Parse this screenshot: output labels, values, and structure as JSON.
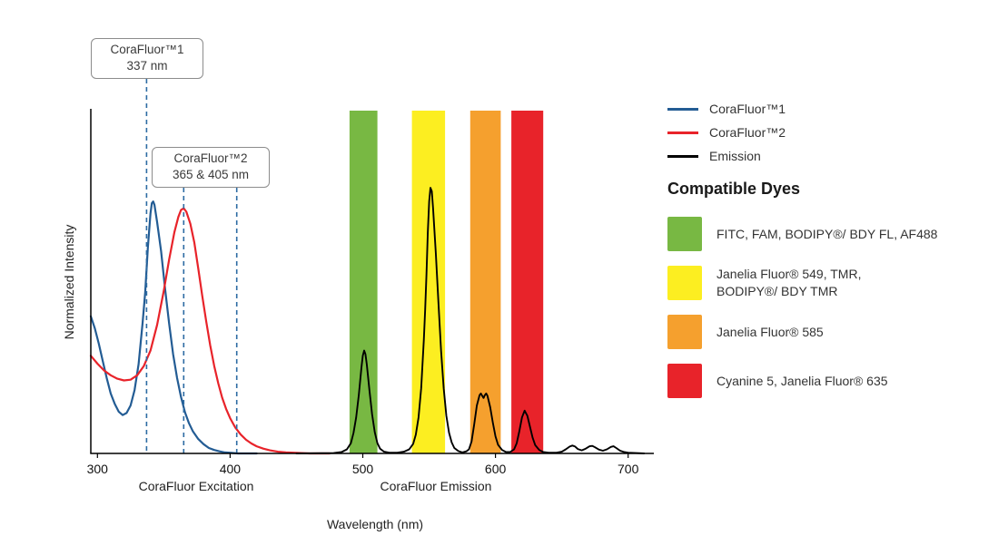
{
  "chart_data": {
    "type": "line",
    "title": "",
    "xlabel": "Wavelength (nm)",
    "ylabel": "Normalized Intensity",
    "x_axis_label_excitation": "CoraFluor Excitation",
    "x_axis_label_emission": "CoraFluor Emission",
    "xlim": [
      295,
      718
    ],
    "ylim": [
      0,
      1
    ],
    "x_ticks": [
      300,
      400,
      500,
      600,
      700
    ],
    "grid": false,
    "legend_position": "top-right",
    "callout_line_color": "#2d6ba3",
    "annotations": [
      {
        "title": "CoraFluor™1",
        "value": "337 nm",
        "lines_nm": [
          337
        ]
      },
      {
        "title": "CoraFluor™2",
        "value": "365 & 405 nm",
        "lines_nm": [
          365,
          405
        ]
      }
    ],
    "bands": [
      {
        "id": "green",
        "dyes": "FITC, FAM, BODIPY/ BDY FL, AF488",
        "color": "#78b843",
        "from": 490,
        "to": 511
      },
      {
        "id": "yellow",
        "dyes": "Janelia Fluor 549, TMR, BODIPY/ BDY TMR",
        "color": "#fcee21",
        "from": 537,
        "to": 562
      },
      {
        "id": "orange",
        "dyes": "Janelia Fluor 585",
        "color": "#f5a02e",
        "from": 581,
        "to": 604
      },
      {
        "id": "red",
        "dyes": "Cyanine 5, Janelia Fluor 635",
        "color": "#e8232a",
        "from": 612,
        "to": 636
      }
    ],
    "series": [
      {
        "name": "CoraFluor™1",
        "color": "#235c94",
        "width": 2.2,
        "points": [
          [
            295,
            0.4
          ],
          [
            298,
            0.365
          ],
          [
            301,
            0.32
          ],
          [
            304,
            0.27
          ],
          [
            307,
            0.22
          ],
          [
            310,
            0.175
          ],
          [
            313,
            0.145
          ],
          [
            316,
            0.122
          ],
          [
            319,
            0.112
          ],
          [
            322,
            0.118
          ],
          [
            325,
            0.14
          ],
          [
            328,
            0.185
          ],
          [
            331,
            0.26
          ],
          [
            334,
            0.38
          ],
          [
            336,
            0.47
          ],
          [
            338,
            0.6
          ],
          [
            340,
            0.7
          ],
          [
            341,
            0.73
          ],
          [
            342,
            0.735
          ],
          [
            343,
            0.725
          ],
          [
            345,
            0.675
          ],
          [
            348,
            0.59
          ],
          [
            351,
            0.48
          ],
          [
            354,
            0.38
          ],
          [
            357,
            0.29
          ],
          [
            360,
            0.22
          ],
          [
            363,
            0.165
          ],
          [
            366,
            0.12
          ],
          [
            369,
            0.088
          ],
          [
            372,
            0.064
          ],
          [
            376,
            0.042
          ],
          [
            380,
            0.027
          ],
          [
            384,
            0.016
          ],
          [
            388,
            0.01
          ],
          [
            392,
            0.006
          ],
          [
            396,
            0.003
          ],
          [
            401,
            0.0015
          ],
          [
            406,
            0
          ],
          [
            420,
            0
          ]
        ]
      },
      {
        "name": "CoraFluor™2",
        "color": "#e8232a",
        "width": 2.2,
        "points": [
          [
            295,
            0.285
          ],
          [
            300,
            0.262
          ],
          [
            305,
            0.242
          ],
          [
            310,
            0.228
          ],
          [
            315,
            0.218
          ],
          [
            320,
            0.213
          ],
          [
            325,
            0.215
          ],
          [
            330,
            0.228
          ],
          [
            335,
            0.255
          ],
          [
            340,
            0.3
          ],
          [
            345,
            0.375
          ],
          [
            350,
            0.475
          ],
          [
            354,
            0.565
          ],
          [
            358,
            0.645
          ],
          [
            361,
            0.69
          ],
          [
            363,
            0.71
          ],
          [
            365,
            0.715
          ],
          [
            367,
            0.705
          ],
          [
            370,
            0.67
          ],
          [
            373,
            0.615
          ],
          [
            376,
            0.54
          ],
          [
            379,
            0.46
          ],
          [
            382,
            0.385
          ],
          [
            385,
            0.315
          ],
          [
            388,
            0.255
          ],
          [
            391,
            0.205
          ],
          [
            394,
            0.163
          ],
          [
            397,
            0.13
          ],
          [
            400,
            0.103
          ],
          [
            404,
            0.075
          ],
          [
            408,
            0.055
          ],
          [
            412,
            0.04
          ],
          [
            416,
            0.029
          ],
          [
            420,
            0.021
          ],
          [
            425,
            0.014
          ],
          [
            430,
            0.009
          ],
          [
            436,
            0.005
          ],
          [
            442,
            0.003
          ],
          [
            450,
            0.0015
          ],
          [
            460,
            0
          ],
          [
            475,
            0
          ]
        ]
      },
      {
        "name": "Emission",
        "color": "#000000",
        "width": 1.9,
        "points": [
          [
            450,
            0
          ],
          [
            478,
            0.001
          ],
          [
            484,
            0.004
          ],
          [
            488,
            0.012
          ],
          [
            491,
            0.03
          ],
          [
            493,
            0.06
          ],
          [
            495,
            0.105
          ],
          [
            497,
            0.17
          ],
          [
            499,
            0.25
          ],
          [
            500,
            0.285
          ],
          [
            501,
            0.3
          ],
          [
            502,
            0.29
          ],
          [
            503,
            0.26
          ],
          [
            505,
            0.185
          ],
          [
            507,
            0.115
          ],
          [
            509,
            0.062
          ],
          [
            511,
            0.03
          ],
          [
            513,
            0.014
          ],
          [
            516,
            0.005
          ],
          [
            520,
            0.002
          ],
          [
            526,
            0.002
          ],
          [
            531,
            0.005
          ],
          [
            535,
            0.012
          ],
          [
            538,
            0.028
          ],
          [
            540,
            0.055
          ],
          [
            542,
            0.105
          ],
          [
            544,
            0.19
          ],
          [
            546,
            0.33
          ],
          [
            547,
            0.42
          ],
          [
            548,
            0.52
          ],
          [
            549,
            0.645
          ],
          [
            550,
            0.735
          ],
          [
            551,
            0.775
          ],
          [
            552,
            0.765
          ],
          [
            553,
            0.715
          ],
          [
            555,
            0.585
          ],
          [
            557,
            0.44
          ],
          [
            559,
            0.3
          ],
          [
            561,
            0.19
          ],
          [
            563,
            0.11
          ],
          [
            565,
            0.06
          ],
          [
            567,
            0.032
          ],
          [
            569,
            0.016
          ],
          [
            572,
            0.007
          ],
          [
            575,
            0.003
          ],
          [
            578,
            0.006
          ],
          [
            580,
            0.012
          ],
          [
            582,
            0.035
          ],
          [
            584,
            0.085
          ],
          [
            586,
            0.14
          ],
          [
            588,
            0.17
          ],
          [
            589,
            0.175
          ],
          [
            590,
            0.168
          ],
          [
            591,
            0.162
          ],
          [
            592,
            0.17
          ],
          [
            593,
            0.175
          ],
          [
            594,
            0.168
          ],
          [
            596,
            0.135
          ],
          [
            598,
            0.09
          ],
          [
            600,
            0.05
          ],
          [
            602,
            0.025
          ],
          [
            605,
            0.01
          ],
          [
            608,
            0.004
          ],
          [
            611,
            0.004
          ],
          [
            614,
            0.012
          ],
          [
            616,
            0.03
          ],
          [
            618,
            0.065
          ],
          [
            620,
            0.105
          ],
          [
            622,
            0.125
          ],
          [
            624,
            0.11
          ],
          [
            626,
            0.078
          ],
          [
            628,
            0.046
          ],
          [
            630,
            0.024
          ],
          [
            633,
            0.01
          ],
          [
            636,
            0.004
          ],
          [
            640,
            0.002
          ],
          [
            646,
            0.002
          ],
          [
            650,
            0.005
          ],
          [
            653,
            0.012
          ],
          [
            656,
            0.02
          ],
          [
            658,
            0.023
          ],
          [
            660,
            0.02
          ],
          [
            662,
            0.013
          ],
          [
            665,
            0.009
          ],
          [
            668,
            0.014
          ],
          [
            671,
            0.021
          ],
          [
            673,
            0.022
          ],
          [
            675,
            0.018
          ],
          [
            678,
            0.011
          ],
          [
            681,
            0.008
          ],
          [
            684,
            0.012
          ],
          [
            687,
            0.019
          ],
          [
            689,
            0.021
          ],
          [
            691,
            0.016
          ],
          [
            694,
            0.008
          ],
          [
            697,
            0.004
          ],
          [
            700,
            0.002
          ],
          [
            706,
            0.001
          ],
          [
            712,
            0
          ]
        ]
      }
    ]
  },
  "legend": {
    "items": [
      {
        "label": "CoraFluor™1",
        "color": "#235c94"
      },
      {
        "label": "CoraFluor™2",
        "color": "#e8232a"
      },
      {
        "label": "Emission",
        "color": "#000000"
      }
    ]
  },
  "dyes": {
    "heading": "Compatible Dyes",
    "items": [
      {
        "id": "green",
        "color": "#78b843",
        "label": [
          "FITC, FAM, BODIPY®/ BDY FL, AF488"
        ]
      },
      {
        "id": "yellow",
        "color": "#fcee21",
        "label": [
          "Janelia Fluor® 549, TMR,",
          "BODIPY®/ BDY TMR"
        ]
      },
      {
        "id": "orange",
        "color": "#f5a02e",
        "label": [
          "Janelia Fluor® 585"
        ]
      },
      {
        "id": "red",
        "color": "#e8232a",
        "label": [
          "Cyanine 5, Janelia Fluor® 635"
        ]
      }
    ]
  }
}
